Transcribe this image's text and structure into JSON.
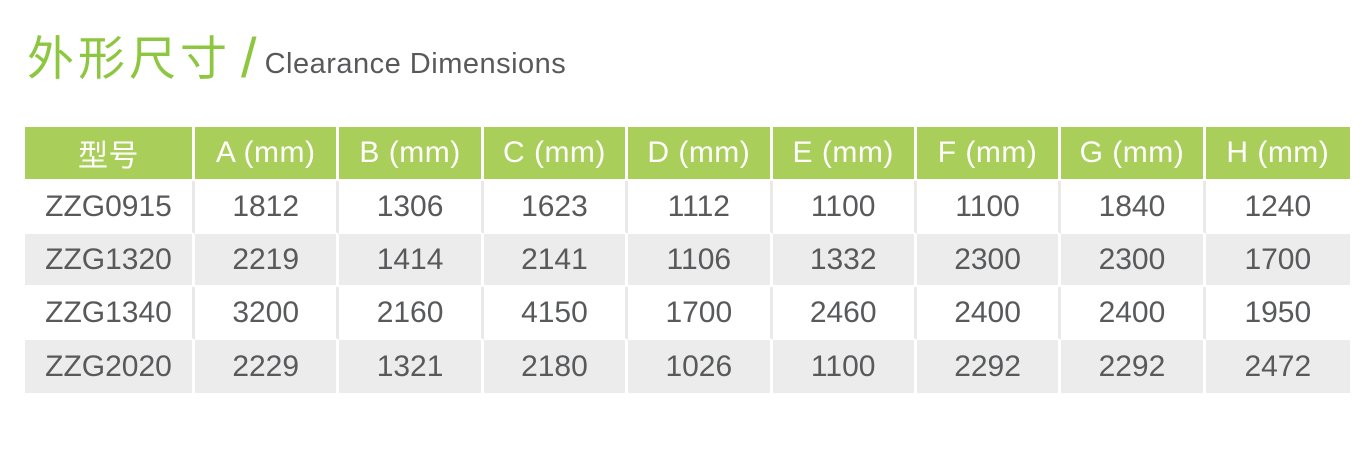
{
  "title": {
    "zh": "外形尺寸",
    "separator": "/",
    "en": "Clearance Dimensions"
  },
  "colors": {
    "title_green": "#8dc63f",
    "header_green": "#a9cf5a",
    "row_alt_gray": "#ececec",
    "text_dark": "#58595b",
    "header_text": "#ffffff"
  },
  "table": {
    "columns": [
      "型号",
      "A (mm)",
      "B (mm)",
      "C (mm)",
      "D (mm)",
      "E (mm)",
      "F (mm)",
      "G (mm)",
      "H (mm)"
    ],
    "rows": [
      {
        "model": "ZZG0915",
        "values": [
          "1812",
          "1306",
          "1623",
          "1112",
          "1100",
          "1100",
          "1840",
          "1240"
        ]
      },
      {
        "model": "ZZG1320",
        "values": [
          "2219",
          "1414",
          "2141",
          "1106",
          "1332",
          "2300",
          "2300",
          "1700"
        ]
      },
      {
        "model": "ZZG1340",
        "values": [
          "3200",
          "2160",
          "4150",
          "1700",
          "2460",
          "2400",
          "2400",
          "1950"
        ]
      },
      {
        "model": "ZZG2020",
        "values": [
          "2229",
          "1321",
          "2180",
          "1026",
          "1100",
          "2292",
          "2292",
          "2472"
        ]
      }
    ]
  }
}
